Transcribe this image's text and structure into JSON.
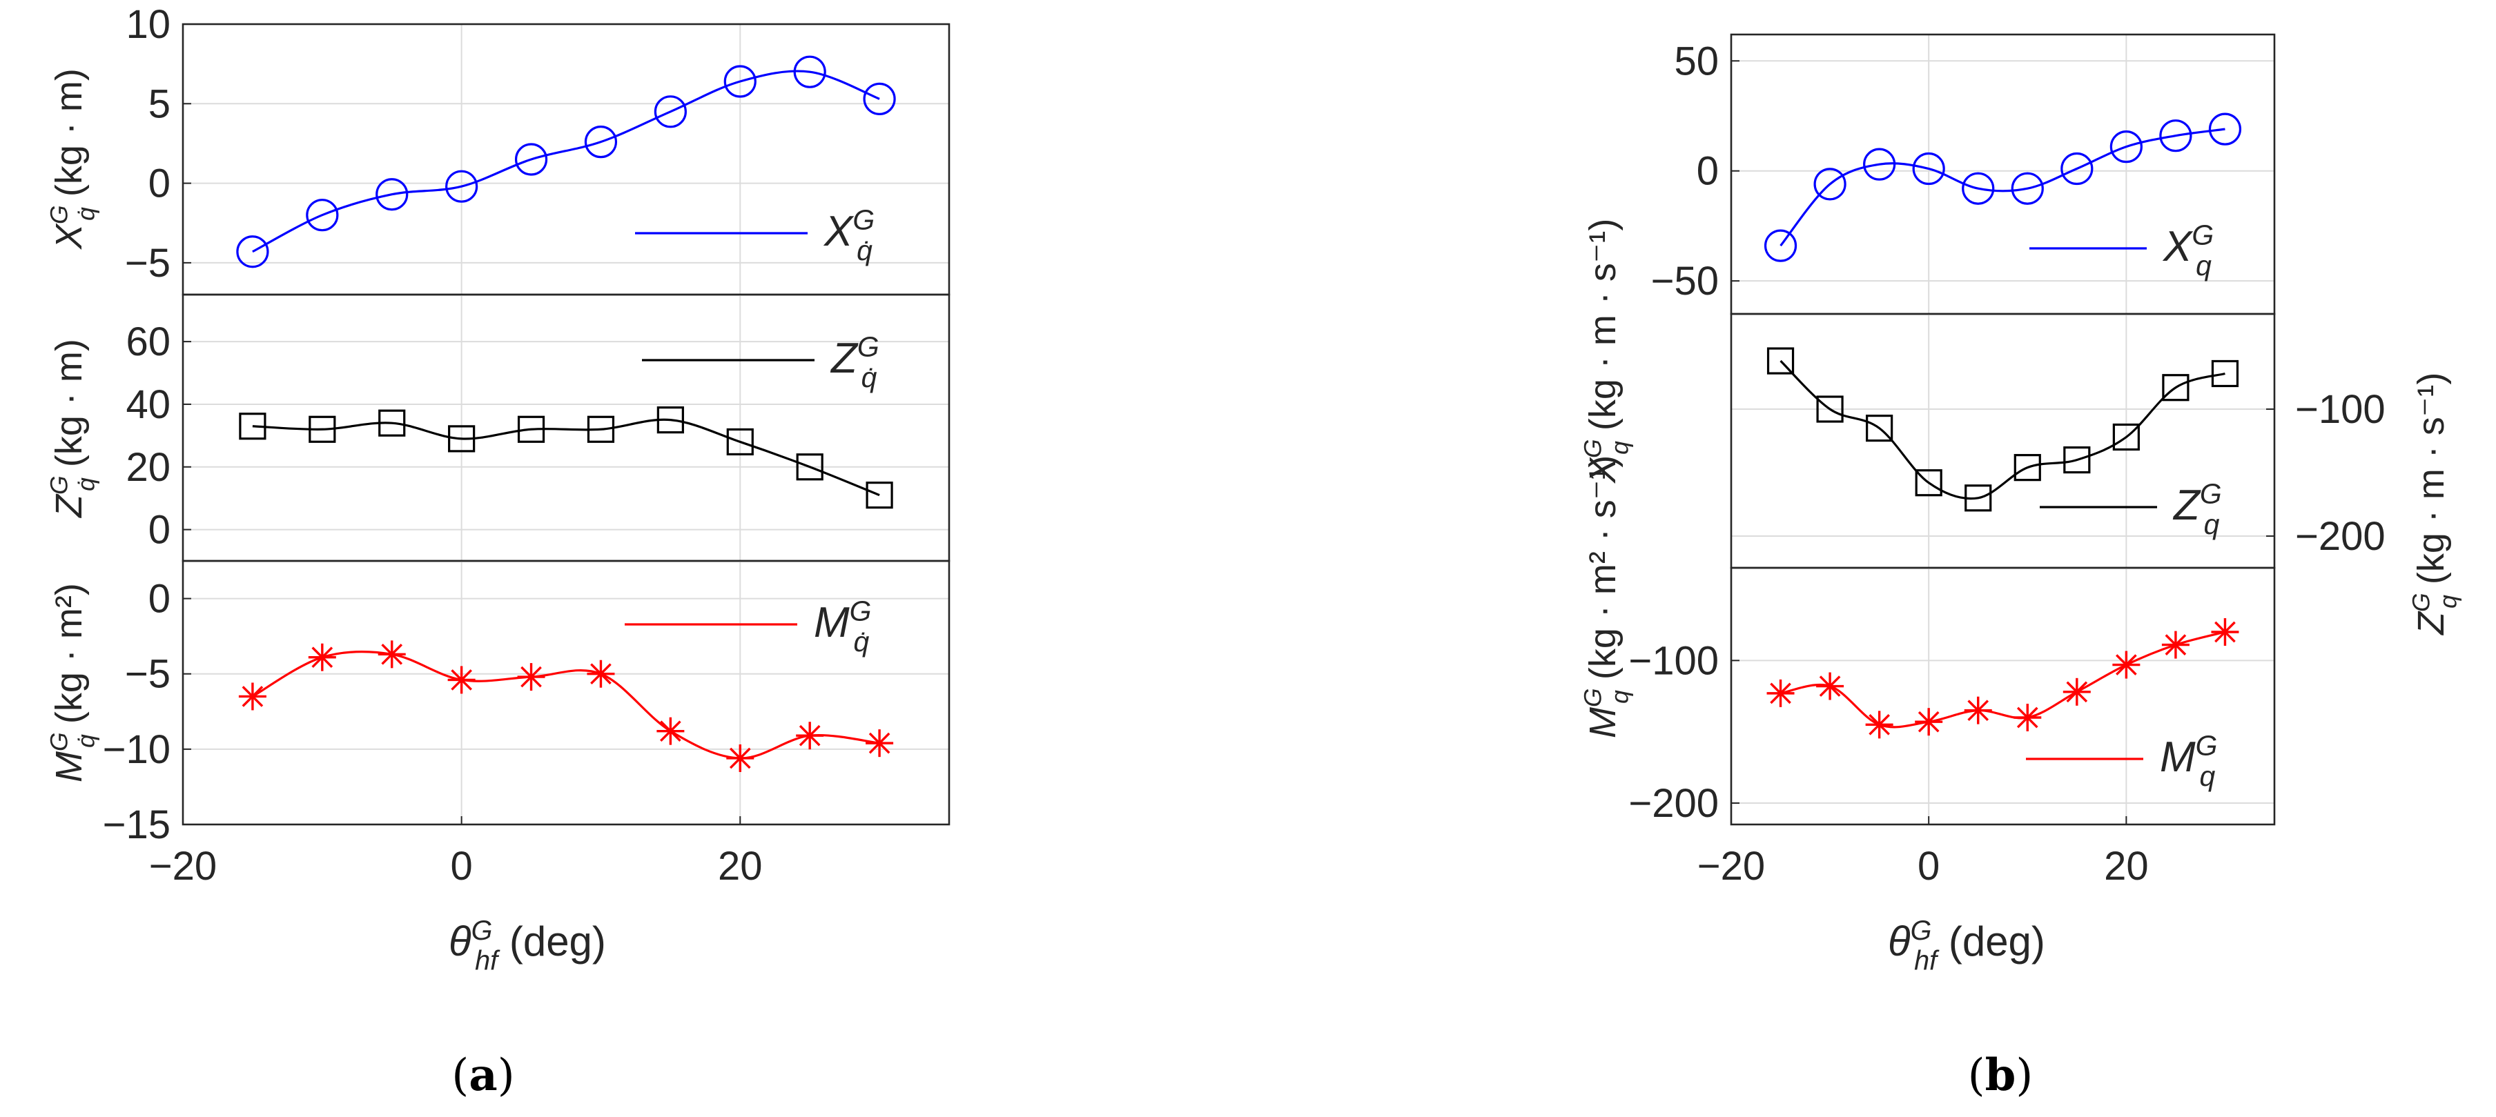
{
  "x_ticks": [
    -20,
    0,
    20
  ],
  "x_label": {
    "main": "θ",
    "sup": "G",
    "sub": "hf",
    "units": " (deg)"
  },
  "panel_labels": [
    {
      "open": "(",
      "letter": "a",
      "close": ")"
    },
    {
      "open": "(",
      "letter": "b",
      "close": ")"
    }
  ],
  "colors": {
    "blue": "#0000ff",
    "black": "#000000",
    "red": "#ff0000"
  },
  "chart_data": [
    {
      "type": "line",
      "panel": "a-top",
      "x": [
        -15,
        -10,
        -5,
        0,
        5,
        10,
        15,
        20,
        25,
        30
      ],
      "series": [
        {
          "name": "X_qdot^G",
          "values": [
            -4.3,
            -2.0,
            -0.7,
            -0.2,
            1.5,
            2.6,
            4.5,
            6.4,
            7.0,
            5.3
          ],
          "color": "#0000ff",
          "marker": "circle"
        }
      ],
      "xlim": [
        -20,
        35
      ],
      "ylim": [
        -7,
        10
      ],
      "yticks": [
        -5,
        0,
        5,
        10
      ],
      "ylabel": {
        "main": "X",
        "sup": "G",
        "sub": "q̇",
        "units": " (kg · m)"
      },
      "legend": {
        "main": "X",
        "sup": "G",
        "sub": "q̇"
      },
      "grid": true,
      "legend_position": "right"
    },
    {
      "type": "line",
      "panel": "a-mid",
      "x": [
        -15,
        -10,
        -5,
        0,
        5,
        10,
        15,
        20,
        25,
        30
      ],
      "series": [
        {
          "name": "Z_qdot^G",
          "values": [
            33,
            32,
            34,
            29,
            32,
            32,
            35,
            28,
            20,
            11
          ],
          "color": "#000000",
          "marker": "square"
        }
      ],
      "xlim": [
        -20,
        35
      ],
      "ylim": [
        -10,
        75
      ],
      "yticks": [
        0,
        20,
        40,
        60
      ],
      "ylabel": {
        "main": "Z",
        "sup": "G",
        "sub": "q̇",
        "units": " (kg · m)"
      },
      "legend": {
        "main": "Z",
        "sup": "G",
        "sub": "q̇"
      },
      "grid": true,
      "legend_position": "top-right"
    },
    {
      "type": "line",
      "panel": "a-bot",
      "x": [
        -15,
        -10,
        -5,
        0,
        5,
        10,
        15,
        20,
        25,
        30
      ],
      "series": [
        {
          "name": "M_qdot^G",
          "values": [
            -6.5,
            -3.9,
            -3.7,
            -5.4,
            -5.2,
            -5.0,
            -8.8,
            -10.6,
            -9.1,
            -9.6
          ],
          "color": "#ff0000",
          "marker": "asterisk"
        }
      ],
      "xlim": [
        -20,
        35
      ],
      "ylim": [
        -15,
        2.5
      ],
      "yticks": [
        -15,
        -10,
        -5,
        0
      ],
      "ylabel": {
        "main": "M",
        "sup": "G",
        "sub": "q̇",
        "units": " (kg · m²)"
      },
      "legend": {
        "main": "M",
        "sup": "G",
        "sub": "q̇"
      },
      "grid": true,
      "legend_position": "top-right"
    },
    {
      "type": "line",
      "panel": "b-top",
      "x": [
        -15,
        -10,
        -5,
        0,
        5,
        10,
        15,
        20,
        25,
        30
      ],
      "series": [
        {
          "name": "X_q^G",
          "values": [
            -34,
            -6,
            3,
            1,
            -8,
            -8,
            1,
            11,
            16,
            19
          ],
          "color": "#0000ff",
          "marker": "circle"
        }
      ],
      "xlim": [
        -20,
        35
      ],
      "ylim": [
        -65,
        62
      ],
      "yticks": [
        -50,
        0,
        50
      ],
      "ylabel": {
        "main": "X",
        "sup": "G",
        "sub": "q",
        "units": " (kg · m · s⁻¹)"
      },
      "legend": {
        "main": "X",
        "sup": "G",
        "sub": "q"
      },
      "grid": true,
      "legend_position": "bottom-right"
    },
    {
      "type": "line",
      "panel": "b-mid",
      "x": [
        -15,
        -10,
        -5,
        0,
        5,
        10,
        15,
        20,
        25,
        30
      ],
      "series": [
        {
          "name": "Z_q^G",
          "values": [
            -62,
            -100,
            -115,
            -158,
            -170,
            -146,
            -140,
            -122,
            -83,
            -72
          ],
          "color": "#000000",
          "marker": "square"
        }
      ],
      "xlim": [
        -20,
        35
      ],
      "ylim": [
        -225,
        -25
      ],
      "yticks": [
        -200,
        -100
      ],
      "ylabel": {
        "main": "Z",
        "sup": "G",
        "sub": "q",
        "units": " (kg · m · s⁻¹)"
      },
      "legend": {
        "main": "Z",
        "sup": "G",
        "sub": "q"
      },
      "grid": true,
      "legend_position": "bottom-right",
      "yaxis_side": "right"
    },
    {
      "type": "line",
      "panel": "b-bot",
      "x": [
        -15,
        -10,
        -5,
        0,
        5,
        10,
        15,
        20,
        25,
        30
      ],
      "series": [
        {
          "name": "M_q^G",
          "values": [
            -123,
            -118,
            -145,
            -143,
            -135,
            -140,
            -122,
            -103,
            -89,
            -80
          ],
          "color": "#ff0000",
          "marker": "asterisk"
        }
      ],
      "xlim": [
        -20,
        35
      ],
      "ylim": [
        -215,
        -35
      ],
      "yticks": [
        -200,
        -100
      ],
      "ylabel": {
        "main": "M",
        "sup": "G",
        "sub": "q",
        "units": " (kg · m² · s⁻¹)"
      },
      "legend": {
        "main": "M",
        "sup": "G",
        "sub": "q"
      },
      "grid": true,
      "legend_position": "bottom-right"
    }
  ]
}
